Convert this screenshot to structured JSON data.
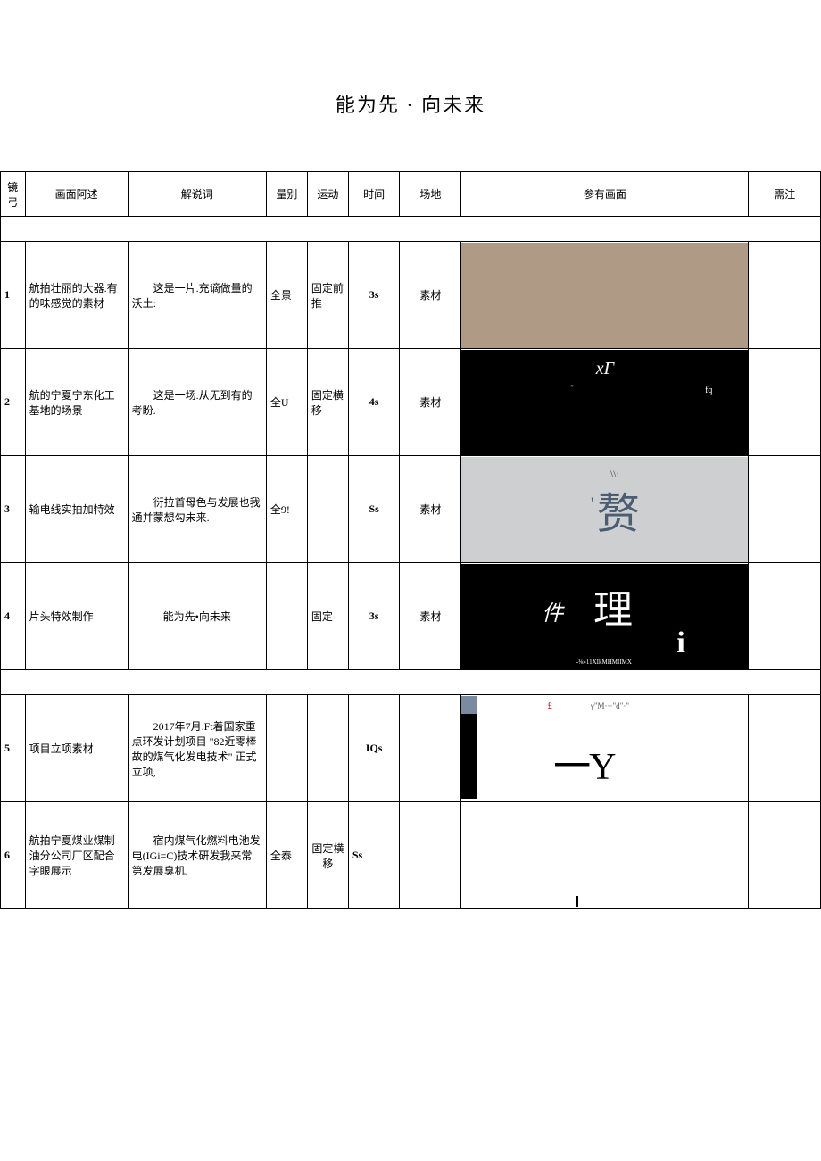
{
  "title": "能为先 · 向未来",
  "headers": {
    "num": "镜弓",
    "desc": "画面阿述",
    "narr": "解说词",
    "type": "量别",
    "move": "运动",
    "time": "时间",
    "loc": "场地",
    "img": "参有画面",
    "note": "需注"
  },
  "rows": [
    {
      "num": "1",
      "desc": "航拍壮丽的大器.有的味感觉的素材",
      "narr": "这是一片.充谪做量的沃土:",
      "type": "全景",
      "move": "固定前推",
      "time": "3s",
      "loc": "素材",
      "note": ""
    },
    {
      "num": "2",
      "desc": "航的宁夏宁东化工基地的场景",
      "narr": "这是一场.从无到有的考盼.",
      "type": "全U",
      "move": "固定横移",
      "time": "4s",
      "loc": "素材",
      "note": ""
    },
    {
      "num": "3",
      "desc": "输电线实拍加特效",
      "narr": "衍拉首母色与发展也我通并蒙想勾未来.",
      "type": "全9!",
      "move": "",
      "time": "Ss",
      "loc": "素材",
      "note": ""
    },
    {
      "num": "4",
      "desc": "片头特效制作",
      "narr": "能为先•向未来",
      "type": "",
      "move": "固定",
      "time": "3s",
      "loc": "素材",
      "note": ""
    },
    {
      "num": "5",
      "desc": "项目立项素材",
      "narr": "2017年7月.Ft着国家重点环发计划项目 \"82近零棒故的煤气化发电技术\" 正式立项,",
      "type": "",
      "move": "",
      "time": "IQs",
      "loc": "",
      "note": ""
    },
    {
      "num": "6",
      "desc": "航拍宁夏煤业煤制油分公司厂区配合字眼展示",
      "narr": "宿内煤气化燃料电池发电(IGi=C)技术研发我来常第发展臭机.",
      "type": "全泰",
      "move": "固定横移",
      "time": "Ss",
      "loc": "",
      "note": ""
    }
  ],
  "ref_imgs": {
    "r2": {
      "xg": "xΓ",
      "qt": "″",
      "fq": "fq"
    },
    "r3": {
      "slash": "\\\\:",
      "tick": "'",
      "char": "赘"
    },
    "r4": {
      "jian": "件",
      "li": "理",
      "i": "i",
      "sm": "-⅜»11XIkMHMIIMX"
    },
    "r5": {
      "pound": "£",
      "gamma": "γ\"M···\"d\"·\"",
      "yy": "一Y"
    }
  }
}
